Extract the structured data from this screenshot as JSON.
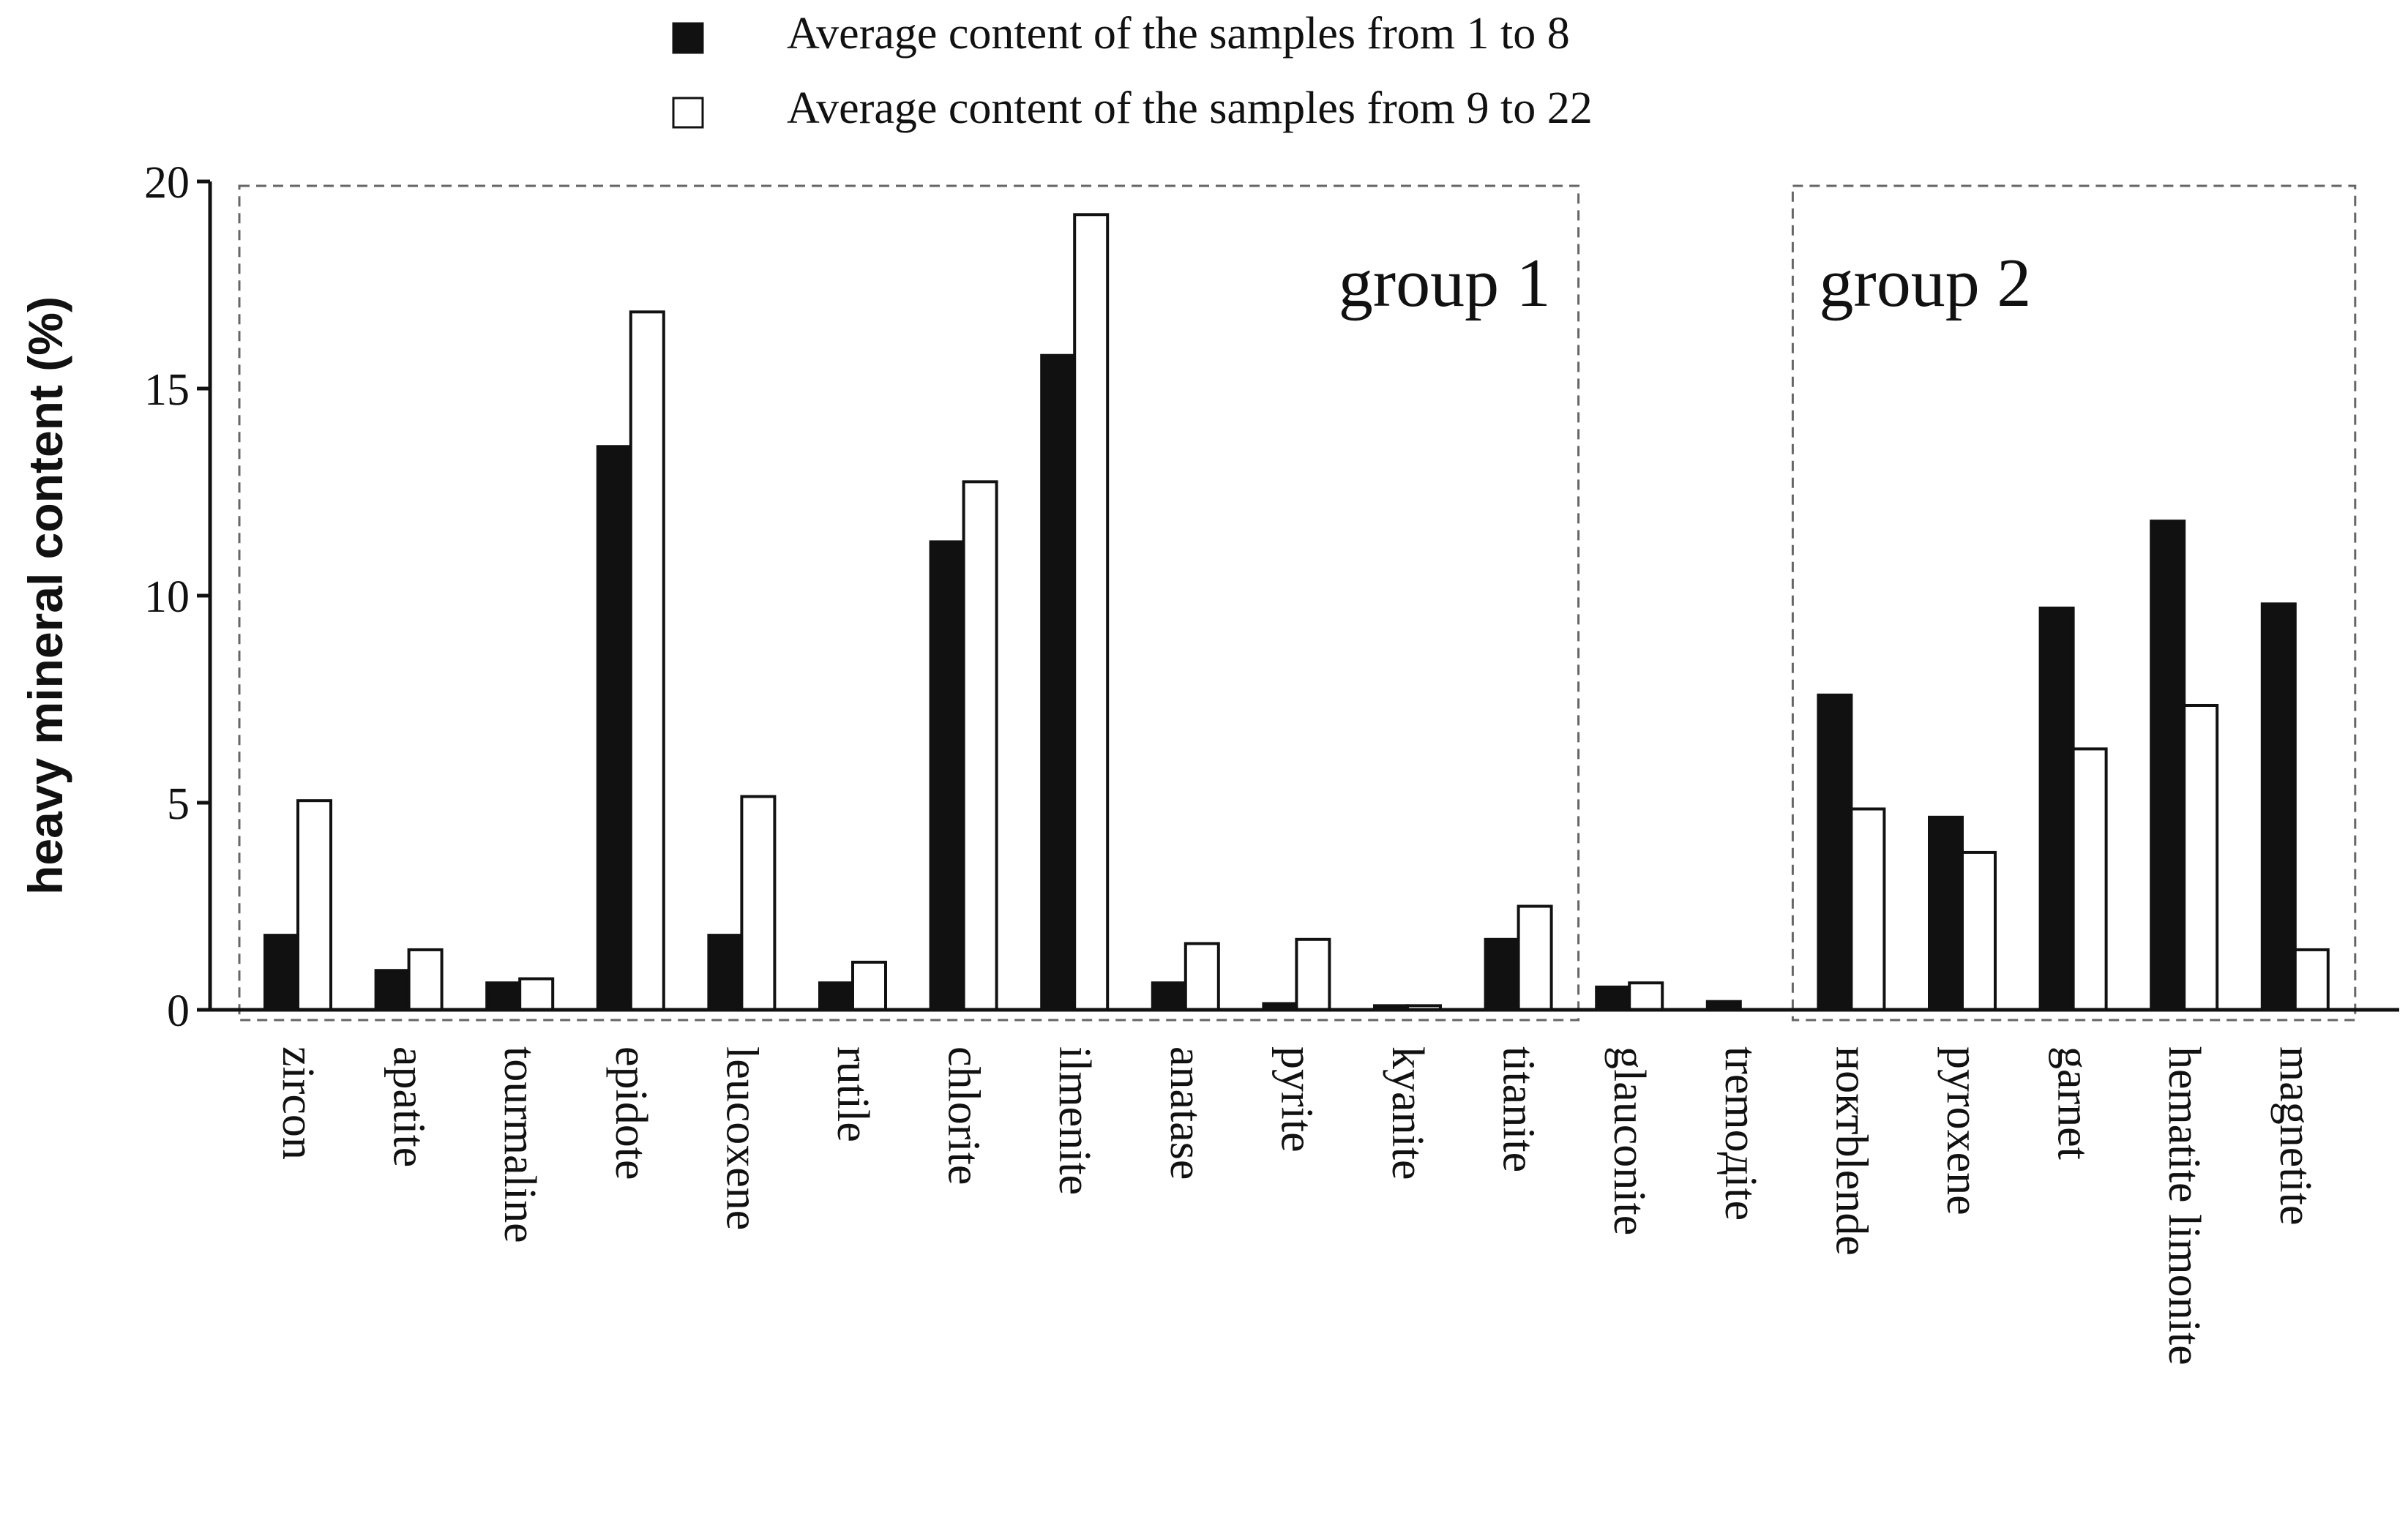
{
  "chart_data": {
    "type": "bar",
    "title": "",
    "xlabel": "",
    "ylabel": "heavy mineral content  (%)",
    "ylim": [
      0,
      20
    ],
    "yticks": [
      0,
      5,
      10,
      15,
      20
    ],
    "grid": false,
    "legend_position": "top",
    "categories": [
      "zircon",
      "apatite",
      "tourmaline",
      "epidote",
      "leucoxene",
      "rutile",
      "chlorite",
      "ilmenite",
      "anatase",
      "pyrite",
      "kyanite",
      "titanite",
      "glauconite",
      "tremoдite",
      "ноктblende",
      "pyroxene",
      "garnet",
      "hematite limonite",
      "magnetite"
    ],
    "series": [
      {
        "name": "Average content of the samples from 1 to 8",
        "color": "#111111",
        "values": [
          1.8,
          0.95,
          0.65,
          13.6,
          1.8,
          0.65,
          11.3,
          15.8,
          0.65,
          0.15,
          0.1,
          1.7,
          0.55,
          0.2,
          7.6,
          4.65,
          9.7,
          11.8,
          9.8
        ]
      },
      {
        "name": "Average content of the samples from 9 to 22",
        "color": "#ffffff",
        "values": [
          5.05,
          1.45,
          0.75,
          16.85,
          5.15,
          1.15,
          12.75,
          19.2,
          1.6,
          1.7,
          0.1,
          2.5,
          0.65,
          0,
          4.85,
          3.8,
          6.3,
          7.35,
          1.45
        ]
      }
    ],
    "annotations": [
      {
        "text": "group 1",
        "first_category": 0,
        "last_category": 11
      },
      {
        "text": "group 2",
        "first_category": 14,
        "last_category": 18
      }
    ]
  }
}
